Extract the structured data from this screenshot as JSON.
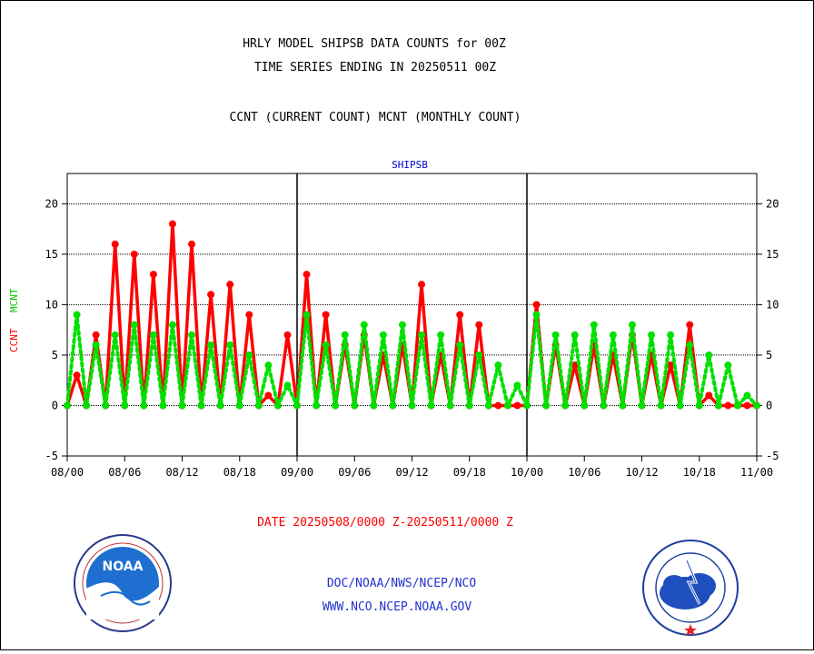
{
  "header": {
    "line1": "HRLY MODEL SHIPSB DATA COUNTS for 00Z",
    "line2": "TIME SERIES ENDING IN 20250511 00Z",
    "line3": "CCNT (CURRENT COUNT) MCNT (MONTHLY COUNT)"
  },
  "footer": {
    "date_range": "DATE 20250508/0000 Z-20250511/0000 Z",
    "org": "DOC/NOAA/NWS/NCEP/NCO",
    "url": "WWW.NCO.NCEP.NOAA.GOV"
  },
  "logos": {
    "left_name": "noaa-logo",
    "left_text": "NOAA",
    "right_name": "national-weather-service-logo"
  },
  "chart_data": {
    "type": "line",
    "title": "SHIPSB",
    "ylabel_ccnt": "CCNT",
    "ylabel_mcnt": "MCNT",
    "ylim": [
      -5,
      23
    ],
    "yticks": [
      20,
      15,
      10,
      5,
      0,
      -5
    ],
    "xlim": [
      0,
      72
    ],
    "xtick_labels": [
      "08/00",
      "08/06",
      "08/12",
      "08/18",
      "09/00",
      "09/06",
      "09/12",
      "09/18",
      "10/00",
      "10/06",
      "10/12",
      "10/18",
      "11/00"
    ],
    "day_dividers": [
      24,
      48
    ],
    "grid": "horizontal at 20, 15, 10, 5, 0",
    "colors": {
      "ccnt": "#ff0000",
      "mcnt": "#00e000",
      "title": "#0000cc",
      "axis": "#000000"
    },
    "series": [
      {
        "name": "CCNT",
        "color": "#ff0000",
        "x": [
          0,
          1,
          2,
          3,
          4,
          5,
          6,
          7,
          8,
          9,
          10,
          11,
          12,
          13,
          14,
          15,
          16,
          17,
          18,
          19,
          20,
          21,
          22,
          23,
          24,
          25,
          26,
          27,
          28,
          29,
          30,
          31,
          32,
          33,
          34,
          35,
          36,
          37,
          38,
          39,
          40,
          41,
          42,
          43,
          44,
          45,
          46,
          47,
          48,
          49,
          50,
          51,
          52,
          53,
          54,
          55,
          56,
          57,
          58,
          59,
          60,
          61,
          62,
          63,
          64,
          65,
          66,
          67,
          68,
          69,
          70,
          71,
          72
        ],
        "y": [
          0,
          3,
          0,
          7,
          0,
          16,
          0,
          15,
          0,
          13,
          0,
          18,
          0,
          16,
          0,
          11,
          0,
          12,
          0,
          9,
          0,
          1,
          0,
          7,
          0,
          13,
          0,
          9,
          0,
          6,
          0,
          7,
          0,
          5,
          0,
          6,
          0,
          12,
          0,
          5,
          0,
          9,
          0,
          8,
          0,
          0,
          0,
          0,
          0,
          10,
          0,
          6,
          0,
          4,
          0,
          6,
          0,
          5,
          0,
          7,
          0,
          5,
          0,
          4,
          0,
          8,
          0,
          1,
          0,
          0,
          0,
          0,
          0
        ]
      },
      {
        "name": "MCNT",
        "color": "#00e000",
        "x": [
          0,
          1,
          2,
          3,
          4,
          5,
          6,
          7,
          8,
          9,
          10,
          11,
          12,
          13,
          14,
          15,
          16,
          17,
          18,
          19,
          20,
          21,
          22,
          23,
          24,
          25,
          26,
          27,
          28,
          29,
          30,
          31,
          32,
          33,
          34,
          35,
          36,
          37,
          38,
          39,
          40,
          41,
          42,
          43,
          44,
          45,
          46,
          47,
          48,
          49,
          50,
          51,
          52,
          53,
          54,
          55,
          56,
          57,
          58,
          59,
          60,
          61,
          62,
          63,
          64,
          65,
          66,
          67,
          68,
          69,
          70,
          71,
          72
        ],
        "y": [
          0,
          9,
          0,
          6,
          0,
          7,
          0,
          8,
          0,
          7,
          0,
          8,
          0,
          7,
          0,
          6,
          0,
          6,
          0,
          5,
          0,
          4,
          0,
          2,
          0,
          9,
          0,
          6,
          0,
          7,
          0,
          8,
          0,
          7,
          0,
          8,
          0,
          7,
          0,
          7,
          0,
          6,
          0,
          5,
          0,
          4,
          0,
          2,
          0,
          9,
          0,
          7,
          0,
          7,
          0,
          8,
          0,
          7,
          0,
          8,
          0,
          7,
          0,
          7,
          0,
          6,
          0,
          5,
          0,
          4,
          0,
          1,
          0
        ]
      }
    ]
  }
}
